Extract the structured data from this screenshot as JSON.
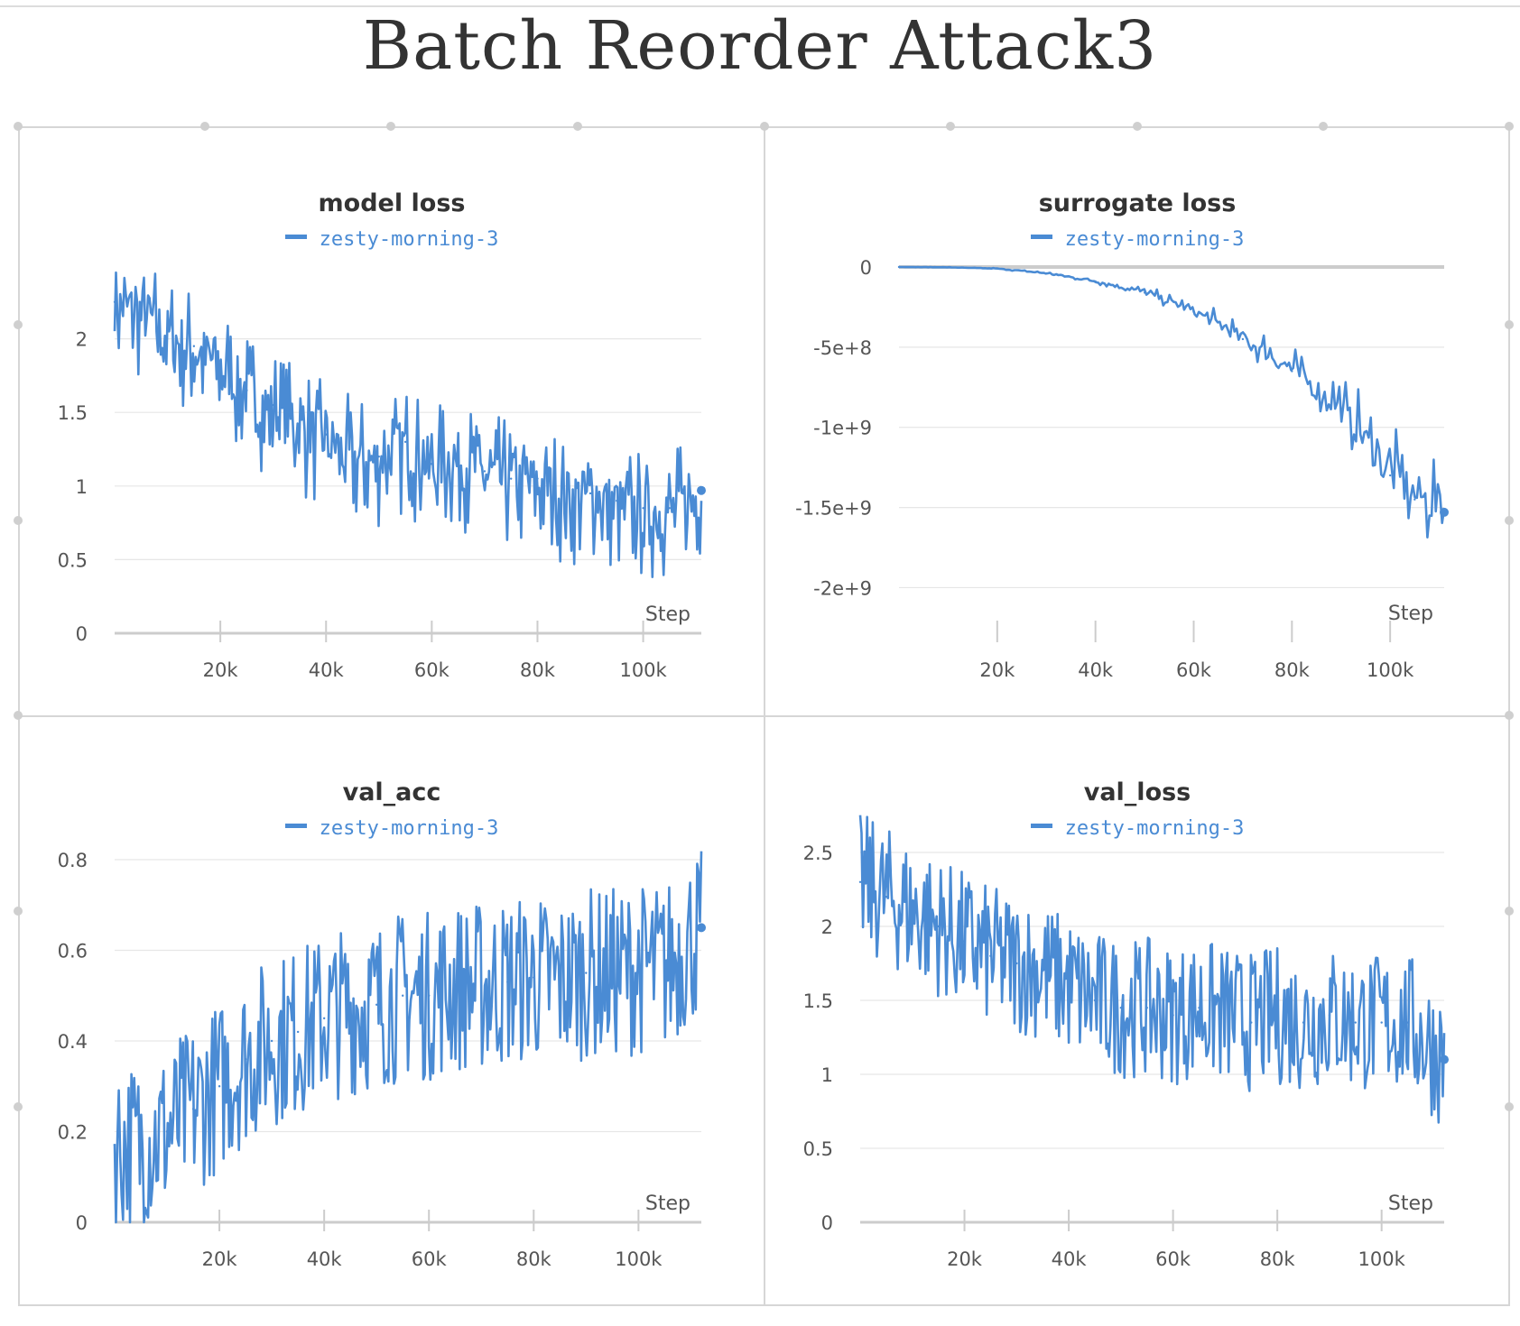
{
  "page": {
    "title": "Batch Reorder Attack3"
  },
  "colors": {
    "series": "#4a8bd4",
    "grid": "#e6e6e6",
    "axis": "#cccccc",
    "tick_text": "#555555"
  },
  "chart_data": [
    {
      "type": "line",
      "title": "model loss",
      "legend": "zesty-morning-3",
      "xlabel": "Step",
      "ylabel": "",
      "xlim": [
        0,
        111000
      ],
      "ylim": [
        0,
        2.5
      ],
      "x_ticks": [
        20000,
        40000,
        60000,
        80000,
        100000
      ],
      "x_tick_labels": [
        "20k",
        "40k",
        "60k",
        "80k",
        "100k"
      ],
      "y_ticks": [
        0,
        0.5,
        1,
        1.5,
        2
      ],
      "y_tick_labels": [
        "0",
        "0.5",
        "1",
        "1.5",
        "2"
      ],
      "series": [
        {
          "name": "zesty-morning-3",
          "x": [
            0,
            5000,
            10000,
            15000,
            20000,
            25000,
            30000,
            35000,
            40000,
            45000,
            50000,
            55000,
            60000,
            65000,
            70000,
            75000,
            80000,
            85000,
            90000,
            95000,
            100000,
            105000,
            111000
          ],
          "y": [
            2.25,
            2.2,
            2.05,
            1.95,
            1.85,
            1.65,
            1.55,
            1.4,
            1.35,
            1.2,
            1.2,
            1.3,
            1.15,
            1.2,
            1.1,
            1.05,
            1.05,
            0.95,
            0.95,
            0.9,
            0.85,
            0.85,
            0.97
          ]
        }
      ]
    },
    {
      "type": "line",
      "title": "surrogate loss",
      "legend": "zesty-morning-3",
      "xlabel": "Step",
      "ylabel": "",
      "xlim": [
        0,
        111000
      ],
      "ylim": [
        -2200000000,
        0
      ],
      "x_ticks": [
        20000,
        40000,
        60000,
        80000,
        100000
      ],
      "x_tick_labels": [
        "20k",
        "40k",
        "60k",
        "80k",
        "100k"
      ],
      "y_ticks": [
        0,
        -500000000,
        -1000000000,
        -1500000000,
        -2000000000
      ],
      "y_tick_labels": [
        "0",
        "-5e+8",
        "-1e+9",
        "-1.5e+9",
        "-2e+9"
      ],
      "series": [
        {
          "name": "zesty-morning-3",
          "x": [
            0,
            10000,
            20000,
            30000,
            40000,
            50000,
            60000,
            70000,
            80000,
            90000,
            100000,
            105000,
            111000
          ],
          "y": [
            0,
            -2000000,
            -10000000,
            -40000000,
            -90000000,
            -160000000,
            -280000000,
            -450000000,
            -650000000,
            -900000000,
            -1300000000,
            -1450000000,
            -1530000000
          ]
        }
      ]
    },
    {
      "type": "line",
      "title": "val_acc",
      "legend": "zesty-morning-3",
      "xlabel": "Step",
      "ylabel": "",
      "xlim": [
        0,
        112000
      ],
      "ylim": [
        0,
        0.8
      ],
      "x_ticks": [
        20000,
        40000,
        60000,
        80000,
        100000
      ],
      "x_tick_labels": [
        "20k",
        "40k",
        "60k",
        "80k",
        "100k"
      ],
      "y_ticks": [
        0,
        0.2,
        0.4,
        0.6,
        0.8
      ],
      "y_tick_labels": [
        "0",
        "0.2",
        "0.4",
        "0.6",
        "0.8"
      ],
      "series": [
        {
          "name": "zesty-morning-3",
          "x": [
            0,
            5000,
            10000,
            15000,
            20000,
            25000,
            30000,
            35000,
            40000,
            45000,
            50000,
            55000,
            60000,
            65000,
            70000,
            75000,
            80000,
            85000,
            90000,
            95000,
            100000,
            105000,
            112000
          ],
          "y": [
            0.17,
            0.17,
            0.2,
            0.25,
            0.3,
            0.36,
            0.4,
            0.42,
            0.45,
            0.47,
            0.48,
            0.5,
            0.5,
            0.52,
            0.52,
            0.53,
            0.54,
            0.53,
            0.55,
            0.55,
            0.56,
            0.56,
            0.65
          ]
        }
      ]
    },
    {
      "type": "line",
      "title": "val_loss",
      "legend": "zesty-morning-3",
      "xlabel": "Step",
      "ylabel": "",
      "xlim": [
        0,
        112000
      ],
      "ylim": [
        0,
        2.5
      ],
      "x_ticks": [
        20000,
        40000,
        60000,
        80000,
        100000
      ],
      "x_tick_labels": [
        "20k",
        "40k",
        "60k",
        "80k",
        "100k"
      ],
      "y_ticks": [
        0,
        0.5,
        1,
        1.5,
        2,
        2.5
      ],
      "y_tick_labels": [
        "0",
        "0.5",
        "1",
        "1.5",
        "2",
        "2.5"
      ],
      "series": [
        {
          "name": "zesty-morning-3",
          "x": [
            0,
            5000,
            10000,
            15000,
            20000,
            25000,
            30000,
            35000,
            40000,
            45000,
            50000,
            55000,
            60000,
            65000,
            70000,
            75000,
            80000,
            85000,
            90000,
            95000,
            100000,
            105000,
            112000
          ],
          "y": [
            2.3,
            2.2,
            2.1,
            2.0,
            1.9,
            1.8,
            1.75,
            1.7,
            1.6,
            1.5,
            1.45,
            1.45,
            1.4,
            1.45,
            1.4,
            1.35,
            1.4,
            1.35,
            1.4,
            1.35,
            1.35,
            1.35,
            1.1
          ]
        }
      ]
    }
  ]
}
